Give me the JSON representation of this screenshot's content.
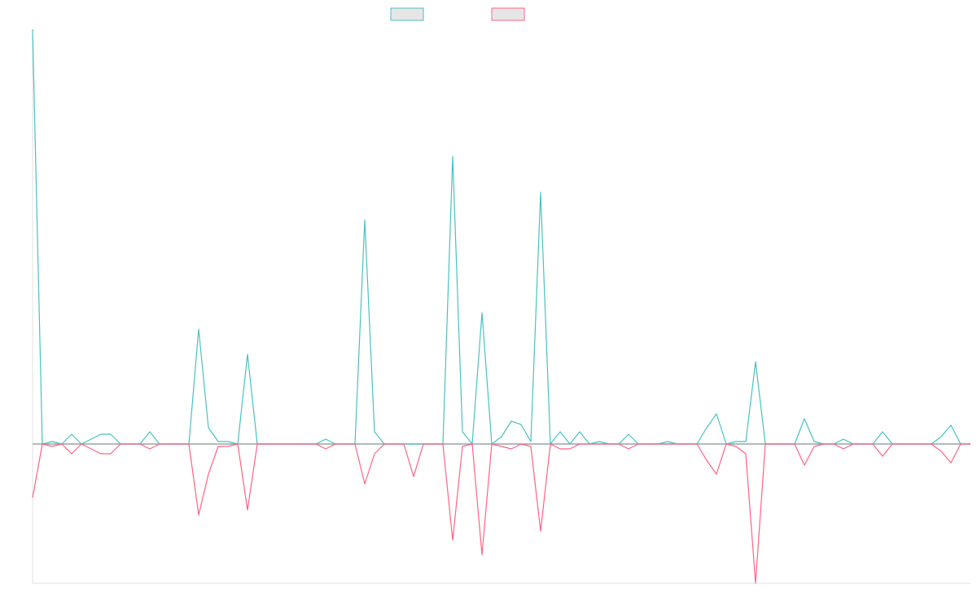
{
  "chart_data": {
    "type": "line",
    "categories": [
      null,
      null,
      null,
      null,
      null,
      null,
      null,
      null,
      null,
      null,
      null,
      null,
      null,
      null,
      null,
      null,
      null,
      null,
      null,
      null,
      null,
      null,
      null,
      null,
      null,
      null,
      null,
      null,
      null,
      null,
      null,
      null,
      null,
      null,
      null,
      null,
      null,
      null,
      null,
      null,
      null,
      null,
      null,
      null,
      null,
      null,
      null,
      null,
      null,
      null,
      null,
      null,
      null,
      null,
      null,
      null,
      null,
      null,
      null,
      null,
      null,
      null,
      null,
      null,
      null,
      null,
      null,
      null,
      null,
      null,
      null,
      null,
      null,
      null,
      null,
      null,
      null,
      null,
      null,
      null,
      null,
      null,
      null,
      null,
      null,
      null,
      null,
      null,
      null,
      null,
      null,
      null,
      null,
      null,
      null,
      null,
      null
    ],
    "series": [
      {
        "color": "#4bc0c0",
        "values": [
          509,
          0,
          3,
          0,
          12,
          0,
          6,
          12,
          12,
          0,
          0,
          0,
          15,
          0,
          0,
          0,
          0,
          141,
          20,
          3,
          3,
          0,
          110,
          0,
          0,
          0,
          0,
          0,
          0,
          0,
          6,
          0,
          0,
          0,
          275,
          15,
          0,
          0,
          0,
          0,
          0,
          0,
          0,
          353,
          15,
          0,
          161,
          0,
          9,
          28,
          24,
          3,
          309,
          0,
          15,
          0,
          15,
          0,
          3,
          0,
          0,
          12,
          0,
          0,
          0,
          3,
          0,
          0,
          0,
          20,
          37,
          0,
          3,
          3,
          101,
          0,
          0,
          0,
          0,
          31,
          3,
          0,
          0,
          6,
          0,
          0,
          0,
          15,
          0,
          0,
          0,
          0,
          0,
          9,
          23,
          0,
          0
        ]
      },
      {
        "color": "#ff6384",
        "values": [
          -66,
          0,
          -3,
          0,
          -12,
          0,
          -6,
          -12,
          -12,
          0,
          0,
          0,
          -6,
          0,
          0,
          0,
          0,
          -87,
          -37,
          -3,
          -3,
          0,
          -81,
          0,
          0,
          0,
          0,
          0,
          0,
          0,
          -6,
          0,
          0,
          0,
          -49,
          -12,
          0,
          0,
          0,
          -40,
          0,
          0,
          0,
          -118,
          -3,
          0,
          -136,
          0,
          -3,
          -6,
          0,
          -3,
          -107,
          0,
          -6,
          -6,
          0,
          0,
          0,
          0,
          0,
          -6,
          0,
          0,
          0,
          0,
          0,
          0,
          0,
          -20,
          -37,
          0,
          -3,
          -12,
          -171,
          0,
          0,
          0,
          0,
          -26,
          -3,
          0,
          0,
          -6,
          0,
          0,
          0,
          -15,
          0,
          0,
          0,
          0,
          0,
          -9,
          -23,
          0,
          0
        ]
      }
    ],
    "ylim": [
      -171,
      509
    ]
  }
}
